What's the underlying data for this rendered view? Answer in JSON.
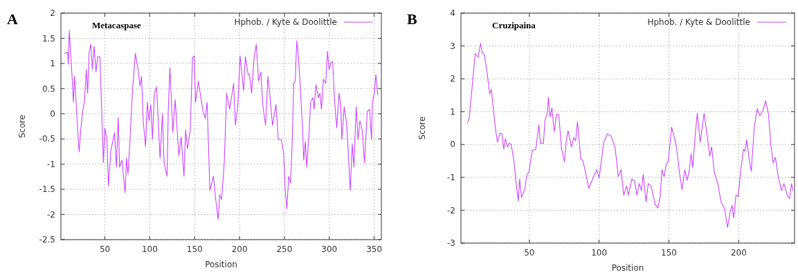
{
  "chart_data": [
    {
      "type": "line",
      "title": "Metacaspase",
      "annotations": [
        "A"
      ],
      "xlabel": "Position",
      "ylabel": "Score",
      "xlim": [
        1,
        358
      ],
      "xticks": [
        50,
        100,
        150,
        200,
        250,
        300,
        350
      ],
      "ylim": [
        -2.5,
        2
      ],
      "yticks": [
        -2.5,
        -2,
        -1.5,
        -1,
        -0.5,
        0,
        0.5,
        1,
        1.5,
        2
      ],
      "grid": true,
      "legend": "top right",
      "line_style": "solid",
      "marker": "none",
      "series": [
        {
          "name": "Hphob. / Kyte & Doolittle",
          "color": "#cc44ff",
          "x": [
            4.6,
            8.5,
            9.3,
            10.3,
            13.6,
            14.9,
            16.2,
            18.8,
            21.3,
            23.1,
            25.2,
            27.2,
            29.3,
            30.8,
            32.4,
            34.4,
            36,
            38,
            40.1,
            41.9,
            44.5,
            45.8,
            48.3,
            49.9,
            52.2,
            54,
            56.6,
            59.2,
            60.7,
            62.8,
            64.8,
            66.4,
            69,
            72.6,
            74.1,
            75.7,
            78,
            80.6,
            83.9,
            87,
            89.1,
            90.9,
            92.7,
            95.3,
            97.3,
            99.1,
            101.2,
            103,
            105.1,
            107.6,
            111.5,
            114.1,
            115.9,
            119.3,
            120.6,
            122.4,
            125.7,
            128.3,
            132.4,
            135,
            138.1,
            139.9,
            142,
            145.1,
            147.6,
            149.5,
            151,
            154.1,
            156.2,
            159.3,
            161.9,
            163.9,
            167,
            170.9,
            173.5,
            176.1,
            177.9,
            180,
            183,
            185.6,
            189,
            193.4,
            195.4,
            198,
            200.6,
            204.5,
            206.5,
            209.6,
            211,
            213.5,
            216.1,
            218.7,
            221.2,
            223.8,
            225.9,
            229,
            231.6,
            234.1,
            236.7,
            240.6,
            243.2,
            246.5,
            249.1,
            250.9,
            252.7,
            254.8,
            256.8,
            258.6,
            260.4,
            262,
            263.8,
            265.8,
            267.6,
            270.2,
            271.5,
            273.3,
            274.8,
            277.4,
            279.2,
            281.8,
            283.1,
            285.1,
            287.7,
            289.5,
            291.3,
            293.4,
            296,
            298,
            299.8,
            301.6,
            303.7,
            305.7,
            308.3,
            310.9,
            312.7,
            314,
            316.6,
            319.2,
            321.2,
            323.3,
            325.6,
            327.4,
            330,
            332,
            334.1,
            336.7,
            339.2,
            342.3,
            344.9,
            347,
            348,
            350.1,
            351.9,
            354
          ],
          "values": [
            1.2,
            1.22,
            0.99,
            1.66,
            0.69,
            0.23,
            0.74,
            -0.05,
            -0.76,
            -0.32,
            0.05,
            0.23,
            0.88,
            0.41,
            1.22,
            1.38,
            0.88,
            1.34,
            0.83,
            1.13,
            1.13,
            0.41,
            -0.97,
            -0.28,
            -0.51,
            -1.43,
            -0.74,
            -0.51,
            -0.37,
            -1.06,
            -0.07,
            -1.06,
            -0.92,
            -1.57,
            -0.88,
            -1.2,
            -0.51,
            0.41,
            1.2,
            0.88,
            0.55,
            0.74,
            -0.14,
            -0.65,
            0.23,
            -0.14,
            0.18,
            -0.51,
            0.41,
            0.53,
            -0.88,
            0,
            -0.97,
            -1.24,
            0.05,
            0.92,
            -0.37,
            0.28,
            -0.83,
            -0.46,
            -1.24,
            -0.32,
            -0.69,
            -0.32,
            1.11,
            1.15,
            0.23,
            0.65,
            0.41,
            0.05,
            -0.09,
            0.23,
            -1.52,
            -1.24,
            -1.7,
            -2.1,
            -1.61,
            -1.7,
            -0.97,
            0.41,
            0.09,
            0.6,
            -0.23,
            0.14,
            1.15,
            0.46,
            1.13,
            0.78,
            0.78,
            0.41,
            1.1,
            1.38,
            0.65,
            0.83,
            0.18,
            -0.23,
            0.74,
            0.32,
            -0.23,
            0.18,
            -0.51,
            -0.51,
            -0.78,
            -1.52,
            -1.89,
            -1.24,
            -1.38,
            -0.6,
            0.6,
            0.65,
            1.45,
            1.1,
            0.55,
            -0.28,
            -0.92,
            -0.55,
            -1.06,
            -0.41,
            0.23,
            0.32,
            0.09,
            0.58,
            0.32,
            0.41,
            0.09,
            0.69,
            0.6,
            1.24,
            0.88,
            1.01,
            1.04,
            0.32,
            -0.28,
            0.41,
            0.18,
            -0.51,
            0.14,
            -0.18,
            -0.78,
            -1.52,
            -0.6,
            -1.06,
            0.14,
            -0.51,
            -0.14,
            -0.32,
            -0.97,
            0.05,
            0.09,
            -0.51,
            0.23,
            0.41,
            0.78,
            0.37
          ]
        }
      ]
    },
    {
      "type": "line",
      "title": "Cruzipaina",
      "annotations": [
        "B"
      ],
      "xlabel": "Position",
      "ylabel": "Score",
      "xlim": [
        1,
        240
      ],
      "xticks": [
        50,
        100,
        150,
        200
      ],
      "ylim": [
        -3,
        4
      ],
      "yticks": [
        -3,
        -2,
        -1,
        0,
        1,
        2,
        3,
        4
      ],
      "grid": true,
      "legend": "top right",
      "line_style": "solid",
      "marker": "none",
      "series": [
        {
          "name": "Hphob. / Kyte & Doolittle",
          "color": "#cc44ff",
          "x": [
            5.6,
            6.8,
            8.4,
            11.2,
            13.4,
            15,
            16.2,
            17.8,
            20,
            21.6,
            22.8,
            24.1,
            25.7,
            27.1,
            29,
            30.4,
            31.7,
            32.8,
            34.3,
            35.6,
            37,
            38.9,
            40.6,
            42.1,
            43.1,
            44.4,
            46.9,
            48,
            49.7,
            52.1,
            54.6,
            56.8,
            57.9,
            60.1,
            61.2,
            62.9,
            63.7,
            64.9,
            66.2,
            67.8,
            69.5,
            71.1,
            73.1,
            75.2,
            76.5,
            77.7,
            80.2,
            81.8,
            83.2,
            84.5,
            86.8,
            88.4,
            90.9,
            92.6,
            94.7,
            96.3,
            98.3,
            100,
            101.6,
            103.3,
            106,
            108.7,
            110.2,
            111.6,
            113.7,
            115.7,
            117.6,
            119.7,
            120.9,
            123.5,
            125.4,
            127.1,
            128.7,
            130.3,
            131.6,
            133.6,
            135.2,
            137.2,
            140.1,
            142.1,
            143.7,
            145,
            146.6,
            147.9,
            149.6,
            151.9,
            154,
            155.6,
            157.3,
            159.4,
            161.4,
            163,
            164.6,
            165.9,
            167.1,
            168.7,
            170.3,
            172.4,
            175.2,
            177.6,
            179.3,
            180.6,
            182.5,
            185,
            187.4,
            189.9,
            192,
            194,
            195.3,
            196.4,
            198,
            199.7,
            201.3,
            203.4,
            204.6,
            205.7,
            207.4,
            209,
            211.1,
            213.2,
            215.2,
            217.2,
            219.3,
            221.4,
            223,
            224.7,
            226.3,
            228.3,
            230.7,
            232.4,
            234.8,
            236.4,
            237.8,
            238.9
          ],
          "values": [
            0.67,
            0.77,
            1.47,
            2.77,
            2.66,
            3.08,
            2.8,
            2.73,
            2.1,
            1.54,
            1.68,
            1.12,
            0.49,
            0.07,
            0.35,
            0.32,
            -0.14,
            0.18,
            -0.07,
            0.04,
            0,
            -0.49,
            -1.19,
            -1.72,
            -1.05,
            -1.61,
            -1.33,
            -0.95,
            -0.84,
            -0.18,
            -0.14,
            0.6,
            0.04,
            0.04,
            0.74,
            0.95,
            1.44,
            0.84,
            1.12,
            0.39,
            0.93,
            0.91,
            -0.14,
            -0.53,
            0.14,
            0.42,
            -0.07,
            0.21,
            0.11,
            0.7,
            -0.42,
            -0.49,
            -0.98,
            -1.33,
            -1.12,
            -0.95,
            -0.77,
            -1.02,
            -0.49,
            0.07,
            0.32,
            0.25,
            0.07,
            -0.14,
            -0.98,
            -0.77,
            -1.54,
            -1.26,
            -1.54,
            -1.05,
            -1.12,
            -1.54,
            -1.19,
            -1.4,
            -0.91,
            -1.75,
            -1.19,
            -1.26,
            -1.82,
            -1.93,
            -1.61,
            -0.77,
            -0.98,
            -0.63,
            -0.49,
            0.53,
            0.21,
            -0.14,
            -0.77,
            -1.37,
            -0.77,
            -1.09,
            -0.77,
            -0.28,
            -0.7,
            0.21,
            0.95,
            0.07,
            0.95,
            0.21,
            -0.35,
            -0.07,
            -0.84,
            -1.19,
            -1.75,
            -1.96,
            -2.52,
            -2.03,
            -1.86,
            -2.24,
            -1.54,
            -1.58,
            -0.84,
            -0.14,
            -0.21,
            0.14,
            -0.42,
            -0.81,
            0.49,
            1.09,
            0.88,
            1.02,
            1.33,
            0.91,
            0,
            -0.56,
            -0.39,
            -0.98,
            -1.4,
            -1.19,
            -1.54,
            -1.65,
            -1.19,
            -1.4
          ]
        }
      ]
    }
  ]
}
